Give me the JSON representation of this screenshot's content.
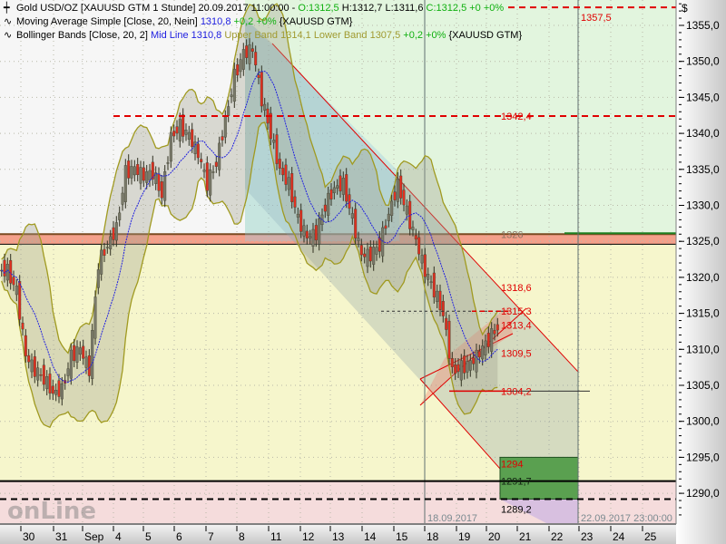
{
  "legend": {
    "main": {
      "name": "Gold USD/OZ [XAUUSD GTM  1 Stunde]",
      "datetime": "20.09.2017 11:00:00 -",
      "open": "O:1312,5",
      "high": "H:1312,7",
      "low": "L:1311,6",
      "close": "C:1312,5 +0 +0%"
    },
    "ma": {
      "name": "Moving Average Simple [Close, 20, Nein]",
      "value": "1310,8",
      "change": "+0,2 +0%",
      "symbol": "{XAUUSD GTM}"
    },
    "bb": {
      "name": "Bollinger Bands [Close, 20, 2]",
      "mid": "Mid Line 1310,8",
      "upper": "Upper Band 1314,1",
      "lower": "Lower Band 1307,5",
      "change": "+0,2 +0%",
      "symbol": "{XAUUSD GTM}"
    }
  },
  "watermark": "Tradesignal onLine",
  "colors": {
    "candle_up": "#7a7a6a",
    "candle_down": "#e03020",
    "ma": "#2020e0",
    "bands": "#a09a20",
    "level": "#e00000",
    "zone_green": "#e2f5de",
    "zone_yellow": "#f6f6cc",
    "zone_pink": "#f5dcdc",
    "zone_band": "#f4a08a",
    "target_box": "#5aa050"
  },
  "chart_data": {
    "type": "candlestick",
    "currency_label": "$",
    "ylim": [
      1286.5,
      1358.5
    ],
    "yticks": [
      "1355,0",
      "1350,0",
      "1345,0",
      "1340,0",
      "1335,0",
      "1330,0",
      "1325,0",
      "1320,0",
      "1315,0",
      "1310,0",
      "1305,0",
      "1300,0",
      "1295,0",
      "1290,0"
    ],
    "ytick_values": [
      1355,
      1350,
      1345,
      1340,
      1335,
      1330,
      1325,
      1320,
      1315,
      1310,
      1305,
      1300,
      1295,
      1290
    ],
    "xticks": [
      "30",
      "31",
      "Sep",
      "4",
      "5",
      "6",
      "7",
      "8",
      "11",
      "12",
      "13",
      "14",
      "15",
      "18",
      "19",
      "20",
      "21",
      "22",
      "23",
      "24",
      "25"
    ],
    "closes": [
      1321,
      1318,
      1309,
      1307,
      1306,
      1304,
      1304.5,
      1309,
      1310,
      1307,
      1322,
      1324.5,
      1327,
      1334.6,
      1335,
      1334,
      1334.6,
      1331.5,
      1339.6,
      1341,
      1339.6,
      1337,
      1333,
      1336,
      1342,
      1348,
      1351,
      1351.6,
      1344.7,
      1340,
      1335,
      1333,
      1328,
      1325.5,
      1326,
      1330,
      1332.5,
      1333,
      1328,
      1323,
      1323,
      1324.5,
      1329,
      1333,
      1329,
      1325,
      1320.7,
      1318.2,
      1315,
      1307,
      1307.5,
      1308,
      1309.4,
      1311.3,
      1313.2
    ],
    "levels": [
      {
        "value": 1357.5,
        "label": "1357,5",
        "style": "red-dashed"
      },
      {
        "value": 1342.4,
        "label": "1342,4",
        "style": "red-dashed"
      },
      {
        "value": 1326,
        "label": "1326",
        "style": "band"
      },
      {
        "value": 1318.6,
        "label": "1318,6",
        "style": "label"
      },
      {
        "value": 1315.3,
        "label": "1315,3",
        "style": "black-dashed"
      },
      {
        "value": 1313.4,
        "label": "1313,4",
        "style": "label"
      },
      {
        "value": 1309.5,
        "label": "1309,5",
        "style": "label"
      },
      {
        "value": 1304.2,
        "label": "1304,2",
        "style": "red-solid"
      },
      {
        "value": 1294,
        "label": "1294",
        "style": "label"
      },
      {
        "value": 1291.7,
        "label": "1291,7",
        "style": "black-solid"
      },
      {
        "value": 1289.2,
        "label": "1289,2",
        "style": "black-dashed"
      }
    ],
    "markers": [
      {
        "label": "18.09.2017"
      },
      {
        "label": "22.09.2017 23:00:00"
      }
    ]
  }
}
